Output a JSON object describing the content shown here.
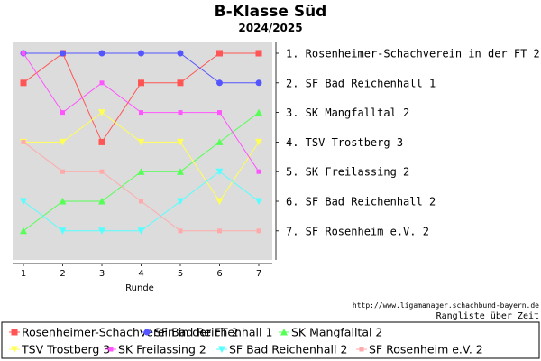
{
  "chart_data": {
    "type": "line",
    "title": "B-Klasse Süd",
    "subtitle": "2024/2025",
    "xlabel": "Runde",
    "ylabel": "",
    "x": [
      1,
      2,
      3,
      4,
      5,
      6,
      7
    ],
    "x_ticks": [
      "1",
      "2",
      "3",
      "4",
      "5",
      "6",
      "7"
    ],
    "ylim": [
      1,
      7
    ],
    "y_inverted": true,
    "grid": false,
    "plot_background": "#dcdcdc",
    "rank_labels": [
      "1. Rosenheimer-Schachverein in der FT 2",
      "2. SF Bad Reichenhall 1",
      "3. SK Mangfalltal 2",
      "4. TSV Trostberg 3",
      "5. SK Freilassing 2",
      "6. SF Bad Reichenhall 2",
      "7. SF Rosenheim e.V. 2"
    ],
    "source_url": "http://www.ligamanager.schachbund-bayern.de",
    "source_note": "Rangliste über Zeit",
    "legend_position": "bottom",
    "series": [
      {
        "name": "Rosenheimer-Schachverein in der FT 2",
        "values": [
          2,
          1,
          4,
          2,
          2,
          1,
          1
        ],
        "color": "#ff5555",
        "marker": "square"
      },
      {
        "name": "SF Bad Reichenhall 1",
        "values": [
          1,
          1,
          1,
          1,
          1,
          2,
          2
        ],
        "color": "#5555ff",
        "marker": "circle"
      },
      {
        "name": "SK Mangfalltal 2",
        "values": [
          7,
          6,
          6,
          5,
          5,
          4,
          3
        ],
        "color": "#55ff55",
        "marker": "triangle-up"
      },
      {
        "name": "TSV Trostberg 3",
        "values": [
          4,
          4,
          3,
          4,
          4,
          6,
          4
        ],
        "color": "#ffff55",
        "marker": "triangle-down"
      },
      {
        "name": "SK Freilassing 2",
        "values": [
          1,
          3,
          2,
          3,
          3,
          3,
          5
        ],
        "color": "#ff55ff",
        "marker": "square-small"
      },
      {
        "name": "SF Bad Reichenhall 2",
        "values": [
          6,
          7,
          7,
          7,
          6,
          5,
          6
        ],
        "color": "#55ffff",
        "marker": "triangle-down"
      },
      {
        "name": "SF Rosenheim e.V. 2",
        "values": [
          4,
          5,
          5,
          6,
          7,
          7,
          7
        ],
        "color": "#ffaaaa",
        "marker": "square-small"
      }
    ]
  }
}
